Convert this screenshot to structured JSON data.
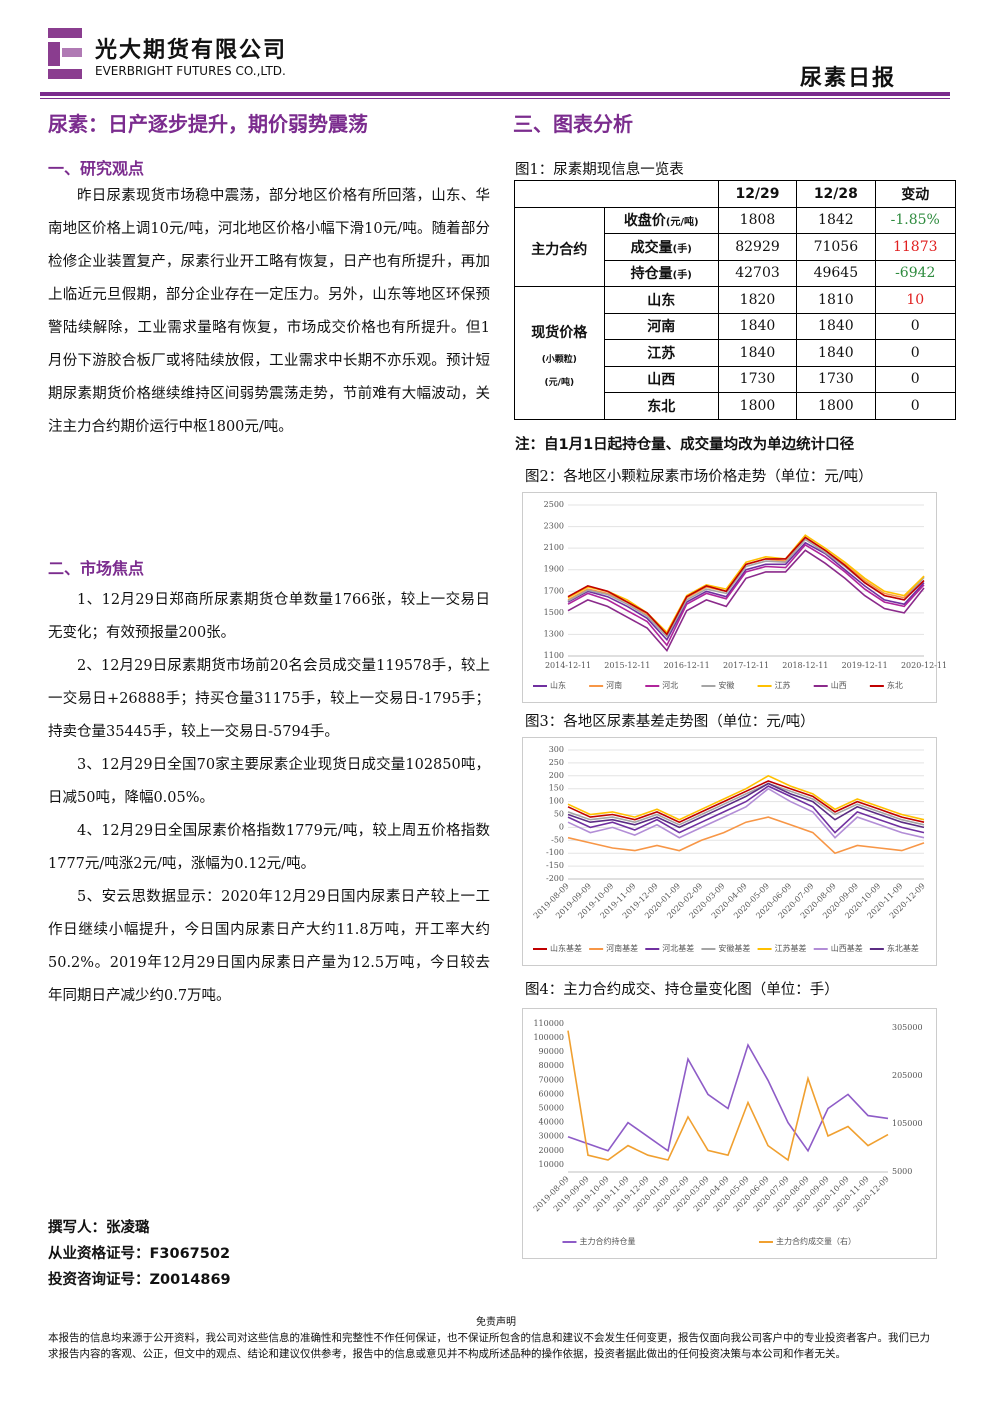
{
  "header": {
    "company_cn": "光大期货有限公司",
    "company_en": "EVERBRIGHT FUTURES CO.,LTD.",
    "report": "尿素日报"
  },
  "left": {
    "headline": "尿素：日产逐步提升，期价弱势震荡",
    "section1_title": "一、研究观点",
    "section1_body": "昨日尿素现货市场稳中震荡，部分地区价格有所回落，山东、华南地区价格上调10元/吨，河北地区价格小幅下滑10元/吨。随着部分检修企业装置复产，尿素行业开工略有恢复，日产也有所提升，再加上临近元旦假期，部分企业存在一定压力。另外，山东等地区环保预警陆续解除，工业需求量略有恢复，市场成交价格也有所提升。但1月份下游胶合板厂或将陆续放假，工业需求中长期不亦乐观。预计短期尿素期货价格继续维持区间弱势震荡走势，节前难有大幅波动，关注主力合约期价运行中枢1800元/吨。",
    "section2_title": "二、市场焦点",
    "items": [
      "1、12月29日郑商所尿素期货仓单数量1766张，较上一交易日无变化；有效预报量200张。",
      "2、12月29日尿素期货市场前20名会员成交量119578手，较上一交易日+26888手；持买仓量31175手，较上一交易日-1795手；持卖仓量35445手，较上一交易日-5794手。",
      "3、12月29日全国70家主要尿素企业现货日成交量102850吨，日减50吨，降幅0.05%。",
      "4、12月29日全国尿素价格指数1779元/吨，较上周五价格指数1777元/吨涨2元/吨，涨幅为0.12元/吨。",
      "5、安云思数据显示：2020年12月29日国内尿素日产较上一工作日继续小幅提升，今日国内尿素日产大约11.8万吨，开工率大约50.2%。2019年12月29日国内尿素日产量为12.5万吨，今日较去年同期日产减少约0.7万吨。"
    ],
    "author": [
      "撰写人：张凌璐",
      "从业资格证号：F3067502",
      "投资咨询证号：Z0014869"
    ]
  },
  "right": {
    "section3_title": "三、图表分析",
    "fig1_caption": "图1：尿素期现信息一览表",
    "table": {
      "header": [
        "12/29",
        "12/28",
        "变动"
      ],
      "groups": [
        {
          "label": [
            "主力合约"
          ],
          "rows": [
            {
              "item": "收盘价",
              "unit": "(元/吨)",
              "cells": [
                "1808",
                "1842",
                "-1.85%"
              ]
            },
            {
              "item": "成交量",
              "unit": "(手)",
              "cells": [
                "82929",
                "71056",
                "11873"
              ]
            },
            {
              "item": "持仓量",
              "unit": "(手)",
              "cells": [
                "42703",
                "49645",
                "-6942"
              ]
            }
          ]
        },
        {
          "label": [
            "现货价格",
            "(小颗粒)",
            "(元/吨)"
          ],
          "rows": [
            {
              "item": "山东",
              "cells": [
                "1820",
                "1810",
                "10"
              ]
            },
            {
              "item": "河南",
              "cells": [
                "1840",
                "1840",
                "0"
              ]
            },
            {
              "item": "江苏",
              "cells": [
                "1840",
                "1840",
                "0"
              ]
            },
            {
              "item": "山西",
              "cells": [
                "1730",
                "1730",
                "0"
              ]
            },
            {
              "item": "东北",
              "cells": [
                "1800",
                "1800",
                "0"
              ]
            }
          ]
        }
      ]
    },
    "note": "注：自1月1日起持仓量、成交量均改为单边统计口径"
  },
  "chart_data": [
    {
      "type": "line",
      "title": "图2：各地区小颗粒尿素市场价格走势（单位：元/吨）",
      "categories": [
        "2014-12-11",
        null,
        null,
        "2015-12-11",
        null,
        null,
        "2016-12-11",
        null,
        null,
        "2017-12-11",
        null,
        null,
        "2018-12-11",
        null,
        null,
        "2019-12-11",
        null,
        null,
        "2020-12-11"
      ],
      "ylim": [
        1100,
        2500
      ],
      "yticks": [
        1100,
        1300,
        1500,
        1700,
        1900,
        2100,
        2300,
        2500
      ],
      "grid": true,
      "series": [
        {
          "name": "山东",
          "color": "#7030a0",
          "values": [
            1600,
            1700,
            1650,
            1560,
            1450,
            1250,
            1600,
            1700,
            1650,
            1900,
            1950,
            1950,
            2150,
            2050,
            1900,
            1750,
            1620,
            1580,
            1780
          ]
        },
        {
          "name": "河南",
          "color": "#f79646",
          "values": [
            1620,
            1720,
            1680,
            1600,
            1480,
            1300,
            1640,
            1740,
            1700,
            1950,
            2000,
            1980,
            2200,
            2080,
            1950,
            1800,
            1680,
            1640,
            1840
          ]
        },
        {
          "name": "河北",
          "color": "#b0259b",
          "values": [
            1580,
            1680,
            1620,
            1520,
            1420,
            1200,
            1580,
            1680,
            1630,
            1880,
            1930,
            1920,
            2130,
            2020,
            1880,
            1720,
            1600,
            1560,
            1760
          ]
        },
        {
          "name": "安徽",
          "color": "#a5a5a5",
          "values": [
            1610,
            1710,
            1670,
            1580,
            1470,
            1280,
            1620,
            1720,
            1680,
            1930,
            1980,
            1970,
            2180,
            2060,
            1930,
            1780,
            1660,
            1620,
            1830
          ]
        },
        {
          "name": "江苏",
          "color": "#ffc000",
          "values": [
            1640,
            1740,
            1700,
            1620,
            1500,
            1320,
            1660,
            1760,
            1720,
            1970,
            2020,
            2000,
            2220,
            2100,
            1970,
            1820,
            1700,
            1660,
            1840
          ]
        },
        {
          "name": "山西",
          "color": "#8b2a8b",
          "values": [
            1520,
            1620,
            1560,
            1460,
            1360,
            1150,
            1520,
            1620,
            1560,
            1820,
            1880,
            1880,
            2080,
            1960,
            1820,
            1660,
            1540,
            1500,
            1730
          ]
        },
        {
          "name": "东北",
          "color": "#c00000",
          "values": [
            1650,
            1750,
            1700,
            1600,
            1500,
            1300,
            1650,
            1750,
            1700,
            1950,
            2000,
            2000,
            2200,
            2080,
            1940,
            1780,
            1660,
            1620,
            1800
          ]
        }
      ]
    },
    {
      "type": "line",
      "title": "图3：各地区尿素基差走势图（单位：元/吨）",
      "categories": [
        "2019-08-09",
        "2019-09-09",
        "2019-10-09",
        "2019-11-09",
        "2019-12-09",
        "2020-01-09",
        "2020-02-09",
        "2020-03-09",
        "2020-04-09",
        "2020-05-09",
        "2020-06-09",
        "2020-07-09",
        "2020-08-09",
        "2020-09-09",
        "2020-10-09",
        "2020-11-09",
        "2020-12-09"
      ],
      "ylim": [
        -200,
        300
      ],
      "yticks": [
        -200,
        -150,
        -100,
        -50,
        0,
        50,
        100,
        150,
        200,
        250,
        300
      ],
      "grid": true,
      "series": [
        {
          "name": "山东基差",
          "color": "#c00000",
          "values": [
            80,
            40,
            50,
            30,
            60,
            20,
            60,
            100,
            140,
            180,
            150,
            120,
            60,
            100,
            70,
            40,
            20
          ]
        },
        {
          "name": "河南基差",
          "color": "#f79646",
          "values": [
            -40,
            -60,
            -80,
            -90,
            -70,
            -90,
            -50,
            -20,
            20,
            40,
            10,
            -20,
            -100,
            -70,
            -80,
            -90,
            -60
          ]
        },
        {
          "name": "河北基差",
          "color": "#7030a0",
          "values": [
            40,
            0,
            20,
            -10,
            30,
            -20,
            20,
            60,
            100,
            160,
            120,
            80,
            -20,
            60,
            30,
            0,
            -20
          ]
        },
        {
          "name": "安徽基差",
          "color": "#a5a5a5",
          "values": [
            60,
            30,
            40,
            20,
            50,
            10,
            50,
            90,
            130,
            170,
            140,
            110,
            50,
            90,
            60,
            30,
            10
          ]
        },
        {
          "name": "江苏基差",
          "color": "#ffc000",
          "values": [
            90,
            50,
            60,
            40,
            70,
            30,
            70,
            110,
            150,
            200,
            160,
            130,
            70,
            110,
            80,
            50,
            30
          ]
        },
        {
          "name": "山西基差",
          "color": "#b28dd6",
          "values": [
            20,
            -20,
            0,
            -30,
            10,
            -40,
            0,
            40,
            80,
            150,
            100,
            60,
            -40,
            40,
            10,
            -20,
            -40
          ]
        },
        {
          "name": "东北基差",
          "color": "#5b2c83",
          "values": [
            50,
            20,
            30,
            10,
            40,
            0,
            40,
            80,
            120,
            170,
            130,
            100,
            30,
            80,
            50,
            20,
            0
          ]
        }
      ]
    },
    {
      "type": "line",
      "title": "图4：主力合约成交、持仓量变化图（单位：手）",
      "categories": [
        "2019-08-09",
        "2019-09-09",
        "2019-10-09",
        "2019-11-09",
        "2019-12-09",
        "2020-01-09",
        "2020-02-09",
        "2020-03-09",
        "2020-04-09",
        "2020-05-09",
        "2020-06-09",
        "2020-07-09",
        "2020-08-09",
        "2020-09-09",
        "2020-10-09",
        "2020-11-09",
        "2020-12-09"
      ],
      "ylim": [
        5000,
        112000
      ],
      "yticks": [
        10000,
        20000,
        30000,
        40000,
        50000,
        60000,
        70000,
        80000,
        90000,
        100000,
        110000
      ],
      "y2lim": [
        5000,
        320000
      ],
      "y2ticks": [
        5000,
        105000,
        205000,
        305000
      ],
      "grid": false,
      "series": [
        {
          "name": "主力合约持仓量",
          "color": "#8e5cc7",
          "values": [
            30000,
            25000,
            20000,
            40000,
            30000,
            20000,
            85000,
            60000,
            50000,
            95000,
            70000,
            40000,
            20000,
            50000,
            60000,
            45000,
            43000
          ]
        },
        {
          "name": "主力合约成交量（右）",
          "color": "#f0a030",
          "axis": "y2",
          "values": [
            300000,
            40000,
            30000,
            60000,
            40000,
            30000,
            120000,
            50000,
            40000,
            150000,
            60000,
            30000,
            200000,
            80000,
            100000,
            60000,
            83000
          ]
        }
      ]
    }
  ],
  "footer": {
    "title": "免责声明",
    "text": "本报告的信息均来源于公开资料，我公司对这些信息的准确性和完整性不作任何保证，也不保证所包含的信息和建议不会发生任何变更，报告仅面向我公司客户中的专业投资者客户。我们已力求报告内容的客观、公正，但文中的观点、结论和建议仅供参考，报告中的信息或意见并不构成所述品种的操作依据，投资者据此做出的任何投资决策与本公司和作者无关。"
  }
}
